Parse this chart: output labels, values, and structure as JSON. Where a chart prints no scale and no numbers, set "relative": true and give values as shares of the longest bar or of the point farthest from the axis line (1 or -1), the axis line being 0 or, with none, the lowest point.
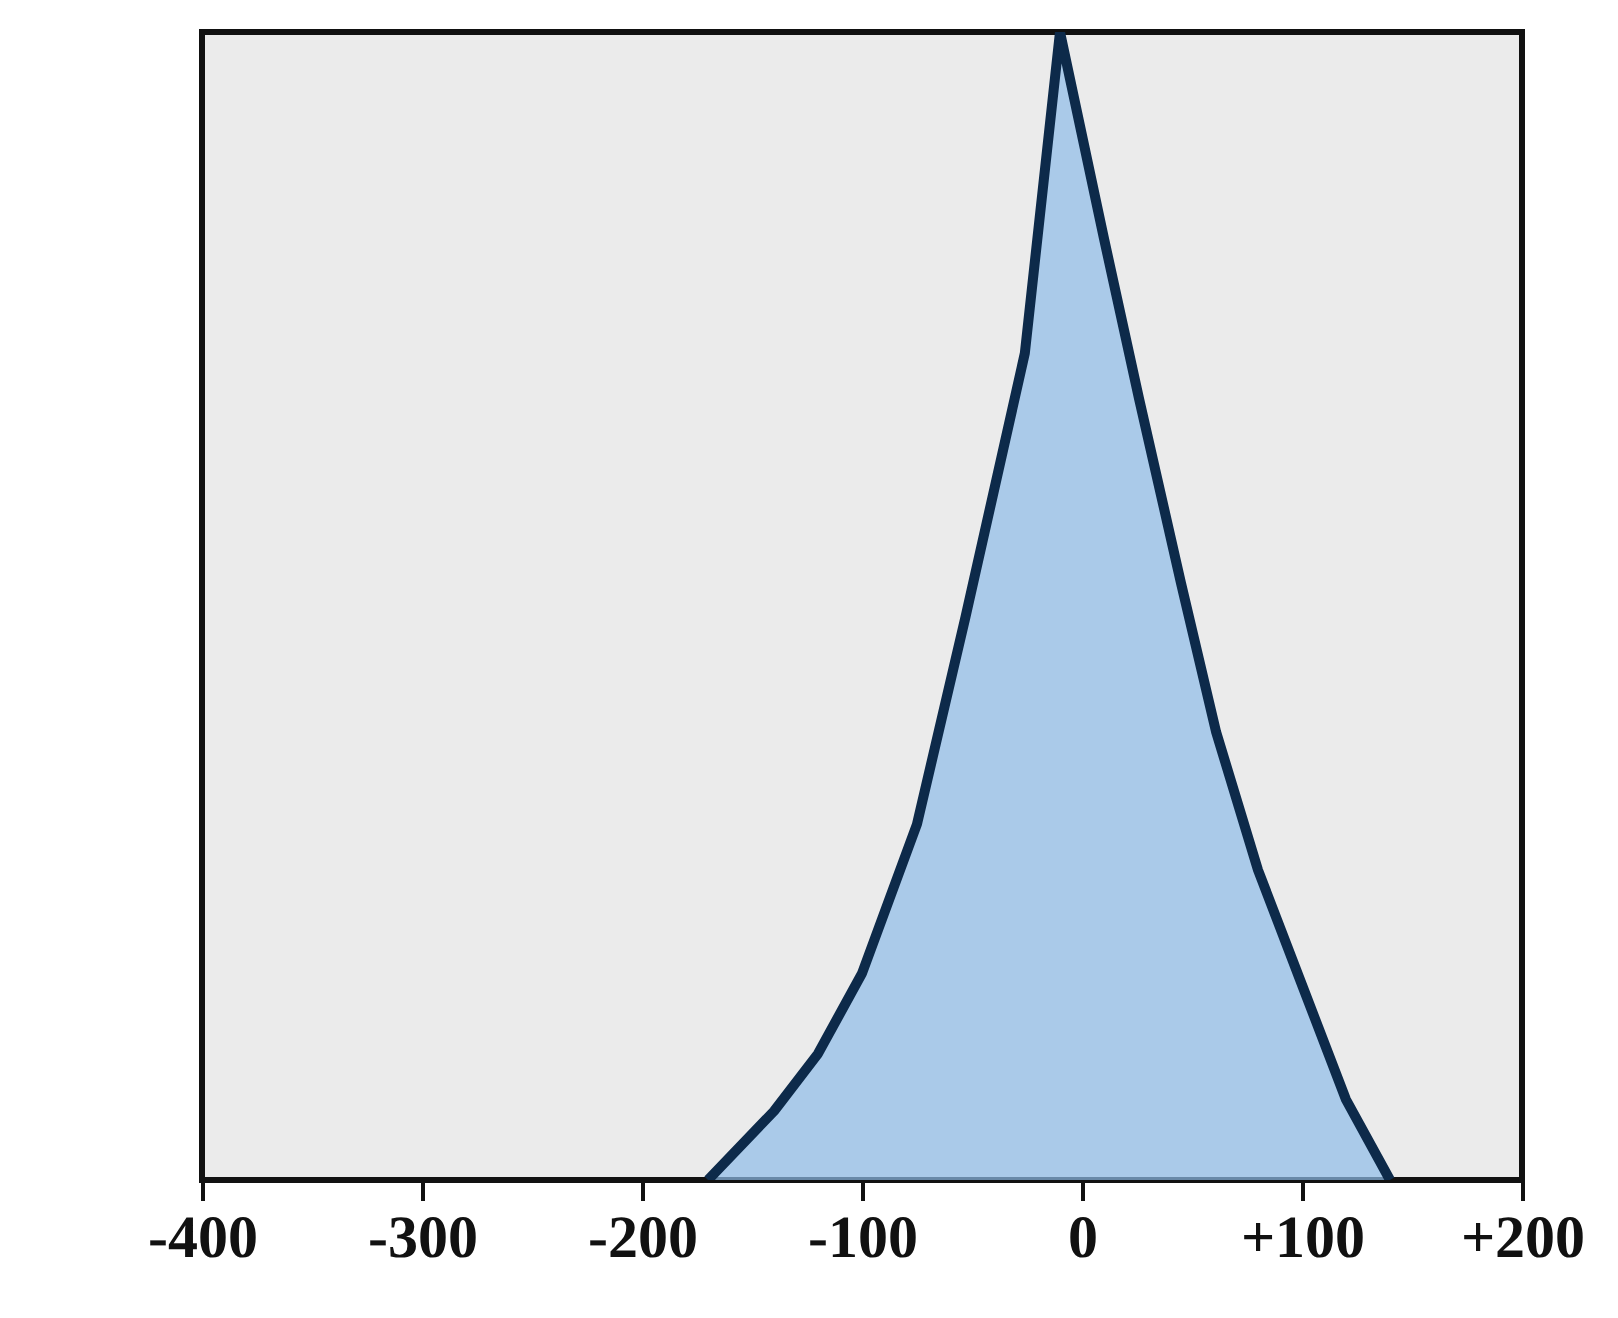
{
  "chart_data": {
    "type": "area",
    "relative": true,
    "x": [
      -170,
      -140,
      -120,
      -100,
      -75,
      -53,
      -26,
      -10,
      10,
      26,
      45,
      61,
      80,
      100,
      120,
      140
    ],
    "series": [
      {
        "color": "#8fbce8",
        "values": [
          0,
          0.06,
          0.11,
          0.18,
          0.31,
          0.49,
          0.72,
          1,
          0.82,
          0.68,
          0.52,
          0.39,
          0.27,
          0.17,
          0.07,
          0
        ]
      }
    ],
    "xlim": [
      -400,
      200
    ],
    "xticks": [
      -400,
      -300,
      -200,
      -100,
      0,
      {
        "value": 100,
        "label": "+100"
      },
      {
        "value": 200,
        "label": "+200"
      }
    ],
    "grid": false
  }
}
